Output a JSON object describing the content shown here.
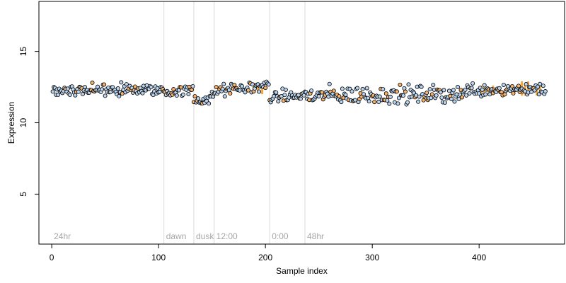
{
  "chart_data": {
    "type": "scatter",
    "title": "",
    "xlabel": "Sample index",
    "ylabel": "Expression",
    "xlim": [
      -12,
      480
    ],
    "ylim": [
      1.5,
      18.5
    ],
    "x_ticks": [
      0,
      100,
      200,
      300,
      400
    ],
    "y_ticks": [
      5,
      10,
      15
    ],
    "grid": false,
    "colors": {
      "point_default": "#b9d3ee",
      "point_highlight": "#f6b26b",
      "point_stroke": "#000000",
      "marker_line": "#d9d9d9",
      "condition_text": "#a6a6a6",
      "bar": "#f3a73a"
    },
    "condition_markers": [
      {
        "label": "24hr",
        "x": 0
      },
      {
        "label": "dawn",
        "x": 105
      },
      {
        "label": "dusk",
        "x": 133
      },
      {
        "label": "12:00",
        "x": 152
      },
      {
        "label": "0:00",
        "x": 204
      },
      {
        "label": "48hr",
        "x": 237
      }
    ],
    "segments": [
      {
        "x_start": 1,
        "x_end": 104,
        "y_start": 12.3,
        "y_end": 12.3,
        "noise": 0.28
      },
      {
        "x_start": 105,
        "x_end": 132,
        "y_start": 12.1,
        "y_end": 12.3,
        "noise": 0.25
      },
      {
        "x_start": 133,
        "x_end": 151,
        "y_start": 11.6,
        "y_end": 11.7,
        "noise": 0.35
      },
      {
        "x_start": 152,
        "x_end": 203,
        "y_start": 12.2,
        "y_end": 12.6,
        "noise": 0.3
      },
      {
        "x_start": 204,
        "x_end": 236,
        "y_start": 11.8,
        "y_end": 11.9,
        "noise": 0.3
      },
      {
        "x_start": 237,
        "x_end": 385,
        "y_start": 11.9,
        "y_end": 12.0,
        "noise": 0.45
      },
      {
        "x_start": 386,
        "x_end": 462,
        "y_start": 12.3,
        "y_end": 12.4,
        "noise": 0.35
      }
    ],
    "bars": [
      {
        "x": 189,
        "y_top": 12.8,
        "y_bottom": 12.2
      },
      {
        "x": 193,
        "y_top": 12.7,
        "y_bottom": 12.1
      },
      {
        "x": 197,
        "y_top": 12.6,
        "y_bottom": 12.0
      },
      {
        "x": 402,
        "y_top": 12.6,
        "y_bottom": 11.9
      },
      {
        "x": 405,
        "y_top": 12.7,
        "y_bottom": 11.9
      },
      {
        "x": 409,
        "y_top": 12.5,
        "y_bottom": 12.0
      },
      {
        "x": 413,
        "y_top": 12.6,
        "y_bottom": 12.0
      },
      {
        "x": 440,
        "y_top": 12.9,
        "y_bottom": 11.9
      },
      {
        "x": 443,
        "y_top": 12.7,
        "y_bottom": 11.9
      },
      {
        "x": 446,
        "y_top": 12.9,
        "y_bottom": 12.0
      },
      {
        "x": 454,
        "y_top": 12.6,
        "y_bottom": 11.9
      },
      {
        "x": 457,
        "y_top": 12.7,
        "y_bottom": 12.0
      }
    ]
  }
}
